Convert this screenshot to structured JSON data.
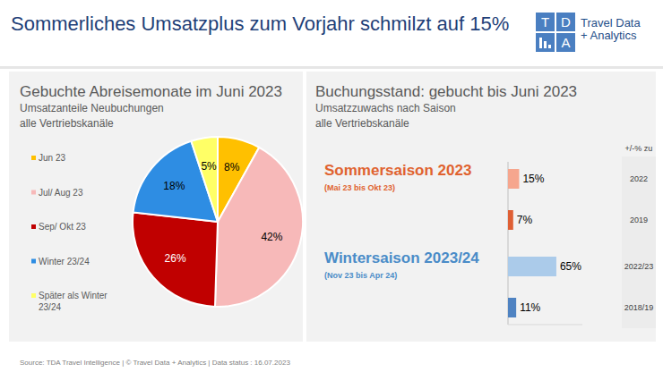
{
  "title": "Sommerliches Umsatzplus zum Vorjahr schmilzt auf 15%",
  "logo": {
    "letters": [
      "T",
      "D",
      "A"
    ],
    "text": [
      "Travel Data",
      "+ Analytics"
    ]
  },
  "source": "Source: TDA Travel Intelligence   |   © Travel Data + Analytics   | Data status : 16.07.2023",
  "chart_data": [
    {
      "type": "pie",
      "title": "Gebuchte Abreisemonate im Juni 2023",
      "subtitle": [
        "Umsatzanteile Neubuchungen",
        "alle Vertriebskanäle"
      ],
      "categories": [
        "Jun 23",
        "Jul/ Aug 23",
        "Sep/ Okt 23",
        "Winter 23/24",
        "Später als Winter 23/24"
      ],
      "values": [
        8,
        42,
        26,
        18,
        5
      ],
      "value_labels": [
        "8%",
        "42%",
        "26%",
        "18%",
        "5%"
      ],
      "colors": [
        "#ffc000",
        "#f7b9b9",
        "#c00000",
        "#2e8de3",
        "#ffff66"
      ],
      "data_labels": true,
      "legend": "left"
    },
    {
      "type": "bar",
      "orientation": "horizontal",
      "title": "Buchungsstand: gebucht bis Juni 2023",
      "subtitle": [
        "Umsatzzuwachs nach Saison",
        "alle Vertriebskanäle"
      ],
      "categories_title": "+/-% zu",
      "xlim": [
        0,
        100
      ],
      "tick_labels": false,
      "data_labels": true,
      "series": [
        {
          "name": "Sommersaison 2023",
          "subtitle": "(Mai 23 bis Okt 23)",
          "color": "#e0622f",
          "categories": [
            "2022",
            "2019"
          ],
          "values": [
            15,
            7
          ],
          "value_labels": [
            "15%",
            "7%"
          ],
          "colors": [
            "#f6a68e",
            "#df5f34"
          ]
        },
        {
          "name": "Wintersaison 2023/24",
          "subtitle": "(Nov 23 bis Apr 24)",
          "color": "#4a8cc8",
          "categories": [
            "2022/23",
            "2018/19"
          ],
          "values": [
            65,
            11
          ],
          "value_labels": [
            "65%",
            "11%"
          ],
          "colors": [
            "#abcbea",
            "#4f83c2"
          ]
        }
      ]
    }
  ]
}
